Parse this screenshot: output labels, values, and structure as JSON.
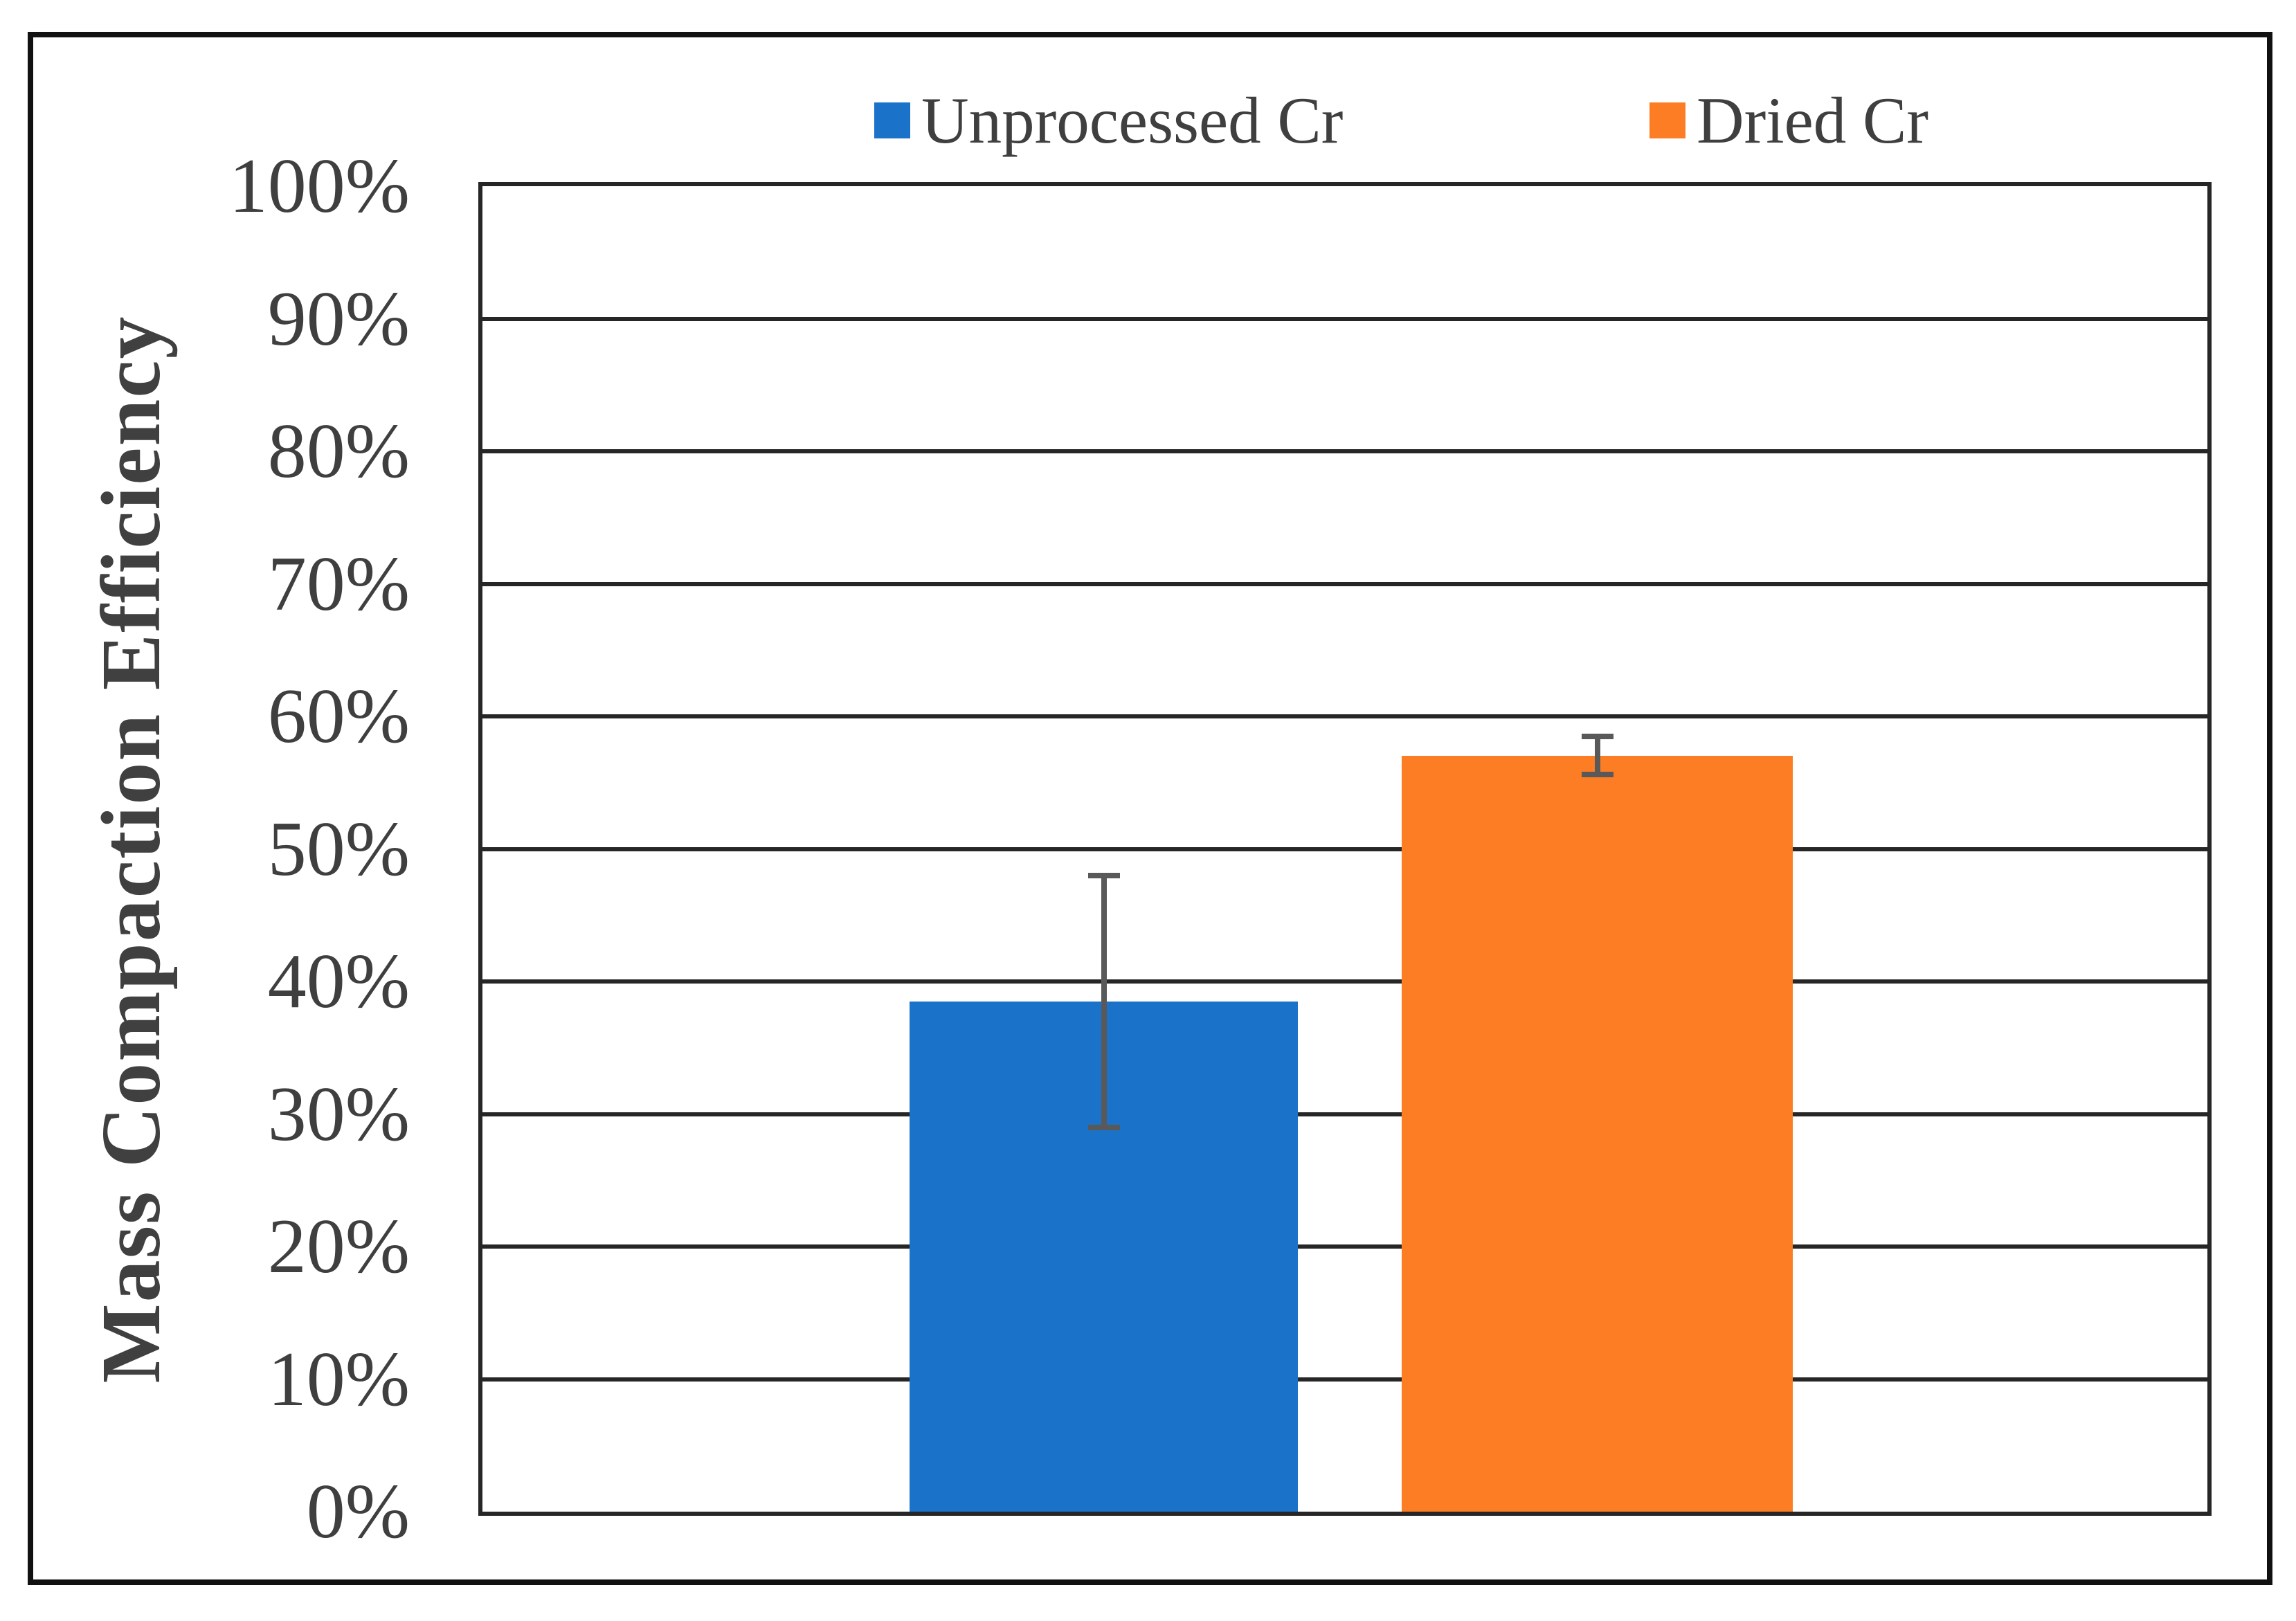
{
  "figure": {
    "background": "#ffffff",
    "border_color": "#111111"
  },
  "legend": {
    "items": [
      {
        "label": "Unprocessed Cr",
        "color": "#1B73C9"
      },
      {
        "label": "Dried Cr",
        "color": "#FD7D24"
      }
    ]
  },
  "y_axis": {
    "title": "Mass Compaction Efficiency",
    "tick_labels": [
      "0%",
      "10%",
      "20%",
      "30%",
      "40%",
      "50%",
      "60%",
      "70%",
      "80%",
      "90%",
      "100%"
    ]
  },
  "chart_data": {
    "type": "bar",
    "title": "",
    "categories": [
      ""
    ],
    "series": [
      {
        "name": "Unprocessed Cr",
        "color": "#1B73C9",
        "values": [
          38.5
        ],
        "error_plus": [
          9.5
        ],
        "error_minus": [
          9.5
        ]
      },
      {
        "name": "Dried Cr",
        "color": "#FD7D24",
        "values": [
          57.0
        ],
        "error_plus": [
          1.5
        ],
        "error_minus": [
          1.4
        ]
      }
    ],
    "ylabel": "Mass Compaction Efficiency",
    "ylim": [
      0,
      100
    ],
    "ytick_step": 10,
    "ytick_format": "percent",
    "grid": "horizontal",
    "grid_color": "#262626",
    "error_bar_color": "#595959",
    "text_color": "#3F3F3F",
    "legend_position": "top-center"
  }
}
